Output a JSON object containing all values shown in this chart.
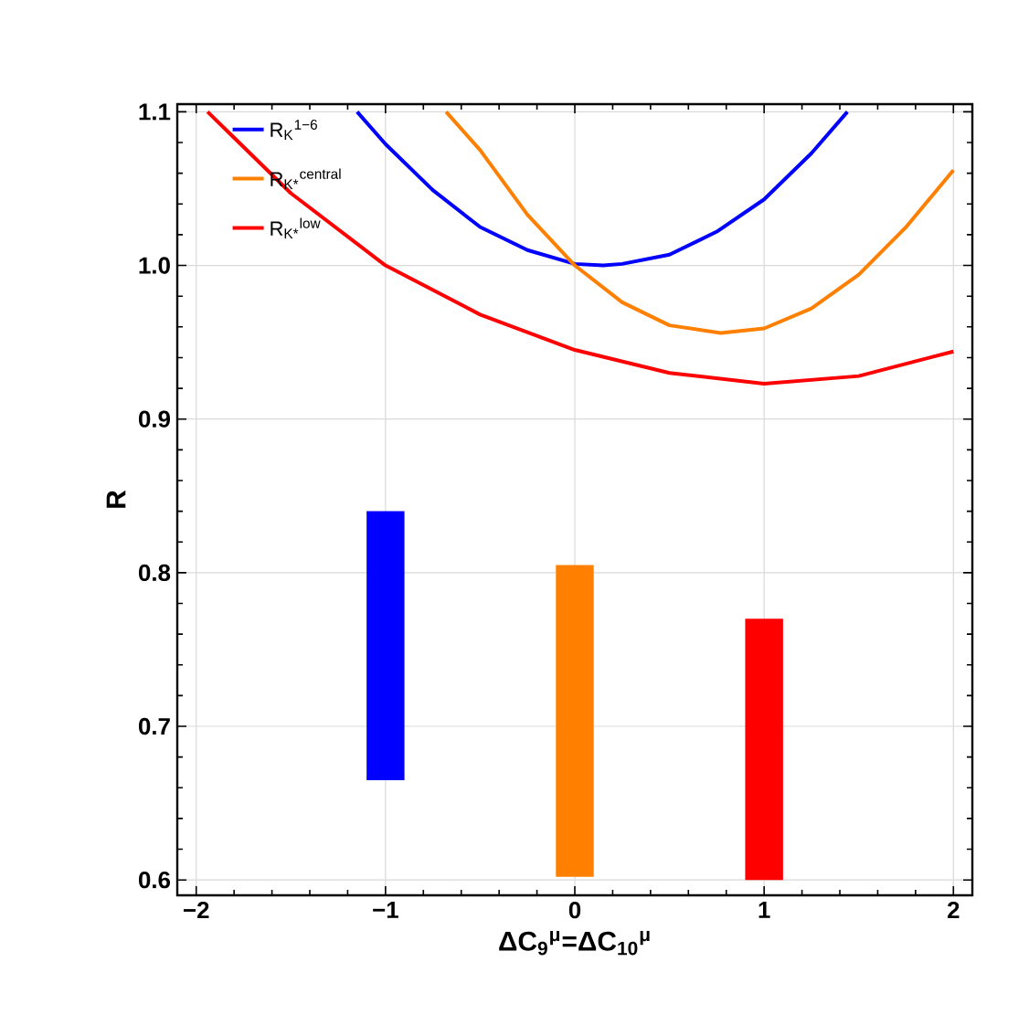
{
  "chart_data": {
    "type": "line",
    "xlabel": "ΔC$_{9}$$^{μ}$=ΔC$_{10}$$^{μ}$",
    "ylabel": "R",
    "xlim": [
      -2.1,
      2.1
    ],
    "ylim": [
      0.59,
      1.105
    ],
    "xticks": [
      {
        "value": -2,
        "label": "−2"
      },
      {
        "value": -1,
        "label": "−1"
      },
      0,
      1,
      2
    ],
    "yticks": [
      0.6,
      0.7,
      0.8,
      0.9,
      {
        "value": 1.0,
        "label": "1.0"
      },
      1.1
    ],
    "grid": true,
    "legend": "top left",
    "marker": "none",
    "line_style": "solid",
    "series": [
      {
        "name": "R$_{K}$$^{1−6}$",
        "color": "#0000ff",
        "x": [
          -1.15,
          -1,
          -0.75,
          -0.5,
          -0.25,
          0,
          0.15,
          0.25,
          0.5,
          0.75,
          1,
          1.25,
          1.44
        ],
        "values": [
          1.1,
          1.079,
          1.049,
          1.025,
          1.01,
          1.001,
          1.0,
          1.001,
          1.007,
          1.022,
          1.043,
          1.073,
          1.1
        ]
      },
      {
        "name": "R$_{K*}$$^{central}$",
        "color": "#ff8000",
        "x": [
          -0.68,
          -0.5,
          -0.25,
          0,
          0.25,
          0.5,
          0.77,
          1,
          1.25,
          1.5,
          1.75,
          2
        ],
        "values": [
          1.1,
          1.075,
          1.033,
          1.0,
          0.976,
          0.961,
          0.956,
          0.959,
          0.972,
          0.994,
          1.025,
          1.062
        ]
      },
      {
        "name": "R$_{K*}$$^{low}$",
        "color": "#ff0000",
        "x": [
          -1.94,
          -1.5,
          -1,
          -0.5,
          0,
          0.5,
          1,
          1.5,
          2
        ],
        "values": [
          1.1,
          1.047,
          1.0,
          0.968,
          0.945,
          0.93,
          0.923,
          0.928,
          0.944
        ]
      },
      {
        "type": "bar",
        "color": "#0000ff",
        "x": [
          -1
        ],
        "base": [
          0.665
        ],
        "values": [
          0.175
        ]
      },
      {
        "type": "bar",
        "color": "#ff8000",
        "x": [
          0
        ],
        "base": [
          0.602
        ],
        "values": [
          0.203
        ]
      },
      {
        "type": "bar",
        "color": "#ff0000",
        "x": [
          1
        ],
        "base": [
          0.6
        ],
        "values": [
          0.17
        ]
      }
    ]
  }
}
